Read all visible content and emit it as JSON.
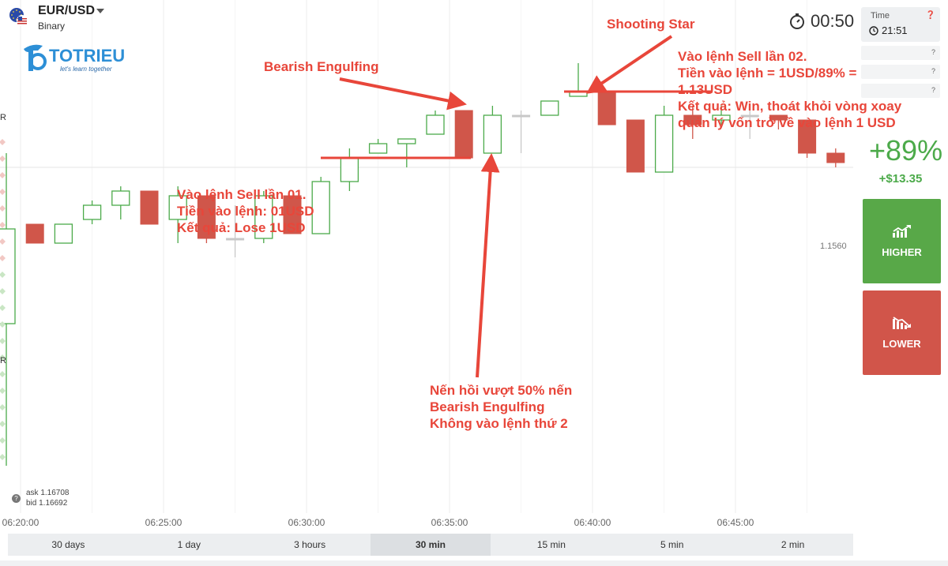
{
  "header": {
    "asset": "EUR/USD",
    "type": "Binary",
    "logo_text": "TOTRIEU",
    "logo_tagline": "let's learn together",
    "countdown": "00:50",
    "time_label": "Time",
    "time_value": "21:51"
  },
  "trade": {
    "payout": "+89%",
    "profit": "+$13.35",
    "higher_label": "HIGHER",
    "lower_label": "LOWER"
  },
  "price_label": "1.1560",
  "quote": {
    "ask": "ask 1.16708",
    "bid": "bid 1.16692"
  },
  "left_marks": [
    "R",
    "R"
  ],
  "timeframes": [
    {
      "label": "30 days",
      "active": false
    },
    {
      "label": "1 day",
      "active": false
    },
    {
      "label": "3 hours",
      "active": false
    },
    {
      "label": "30 min",
      "active": true
    },
    {
      "label": "15 min",
      "active": false
    },
    {
      "label": "5 min",
      "active": false
    },
    {
      "label": "2 min",
      "active": false
    }
  ],
  "annotations": {
    "bearish_engulfing": "Bearish Engulfing",
    "shooting_star": "Shooting Star",
    "sell1": [
      "Vào lệnh Sell lần 01.",
      "Tiền vào lệnh: 01USD",
      "Kết quả: Lose 1USD"
    ],
    "sell2": [
      "Vào lệnh Sell lần 02.",
      "Tiền vào lệnh = 1USD/89% =",
      "1.13USD",
      "Kết quả: Win, thoát khỏi vòng xoay",
      "quản lý vốn trở về vào lệnh 1 USD"
    ],
    "retrace": [
      "Nến hồi vượt 50% nến",
      "Bearish Engulfing",
      "Không vào lệnh thứ 2"
    ]
  },
  "colors": {
    "bull": "#4caa4a",
    "bear": "#d0564a",
    "doji": "#c8c8c8",
    "annotation": "#e8463a",
    "grid": "#eeeeee"
  },
  "chart_data": {
    "type": "candlestick",
    "xlabel": "",
    "ylabel": "",
    "x_ticks": [
      "06:20:00",
      "06:25:00",
      "06:30:00",
      "06:35:00",
      "06:40:00",
      "06:45:00"
    ],
    "candles": [
      {
        "t": "06:19:00",
        "open": 1.1527,
        "high": 1.1563,
        "low": 1.1497,
        "close": 1.1547
      },
      {
        "t": "06:20:00",
        "open": 1.1548,
        "high": 1.1548,
        "low": 1.1544,
        "close": 1.1544
      },
      {
        "t": "06:21:00",
        "open": 1.1544,
        "high": 1.1548,
        "low": 1.1544,
        "close": 1.1548
      },
      {
        "t": "06:22:00",
        "open": 1.1549,
        "high": 1.1553,
        "low": 1.1548,
        "close": 1.1552
      },
      {
        "t": "06:23:00",
        "open": 1.1552,
        "high": 1.1556,
        "low": 1.1549,
        "close": 1.1555
      },
      {
        "t": "06:24:00",
        "open": 1.1555,
        "high": 1.1555,
        "low": 1.1548,
        "close": 1.1548
      },
      {
        "t": "06:25:00",
        "open": 1.1549,
        "high": 1.1556,
        "low": 1.1544,
        "close": 1.1554
      },
      {
        "t": "06:26:00",
        "open": 1.1554,
        "high": 1.1554,
        "low": 1.1544,
        "close": 1.1545
      },
      {
        "t": "06:27:00",
        "open": 1.1545,
        "high": 1.1552,
        "low": 1.1541,
        "close": 1.1545
      },
      {
        "t": "06:28:00",
        "open": 1.1545,
        "high": 1.1555,
        "low": 1.1544,
        "close": 1.1554
      },
      {
        "t": "06:29:00",
        "open": 1.1554,
        "high": 1.1554,
        "low": 1.1546,
        "close": 1.1546
      },
      {
        "t": "06:30:00",
        "open": 1.1546,
        "high": 1.1558,
        "low": 1.1546,
        "close": 1.1557
      },
      {
        "t": "06:31:00",
        "open": 1.1557,
        "high": 1.1564,
        "low": 1.1555,
        "close": 1.1562
      },
      {
        "t": "06:32:00",
        "open": 1.1563,
        "high": 1.1566,
        "low": 1.1563,
        "close": 1.1565
      },
      {
        "t": "06:33:00",
        "open": 1.1565,
        "high": 1.1566,
        "low": 1.156,
        "close": 1.1566
      },
      {
        "t": "06:34:00",
        "open": 1.1567,
        "high": 1.1572,
        "low": 1.1567,
        "close": 1.1571
      },
      {
        "t": "06:35:00",
        "open": 1.1572,
        "high": 1.1572,
        "low": 1.1562,
        "close": 1.1562
      },
      {
        "t": "06:36:00",
        "open": 1.1563,
        "high": 1.1573,
        "low": 1.1563,
        "close": 1.1571
      },
      {
        "t": "06:37:00",
        "open": 1.1571,
        "high": 1.1572,
        "low": 1.1563,
        "close": 1.1571
      },
      {
        "t": "06:38:00",
        "open": 1.1571,
        "high": 1.1574,
        "low": 1.1571,
        "close": 1.1574
      },
      {
        "t": "06:39:00",
        "open": 1.1575,
        "high": 1.1582,
        "low": 1.1575,
        "close": 1.1576
      },
      {
        "t": "06:40:00",
        "open": 1.1576,
        "high": 1.1576,
        "low": 1.1569,
        "close": 1.1569
      },
      {
        "t": "06:41:00",
        "open": 1.157,
        "high": 1.157,
        "low": 1.1559,
        "close": 1.1559
      },
      {
        "t": "06:42:00",
        "open": 1.1559,
        "high": 1.1573,
        "low": 1.1559,
        "close": 1.1571
      },
      {
        "t": "06:43:00",
        "open": 1.1571,
        "high": 1.1573,
        "low": 1.1566,
        "close": 1.1569
      },
      {
        "t": "06:44:00",
        "open": 1.157,
        "high": 1.1573,
        "low": 1.1569,
        "close": 1.1571
      },
      {
        "t": "06:45:00",
        "open": 1.1571,
        "high": 1.1573,
        "low": 1.1566,
        "close": 1.1571
      },
      {
        "t": "06:46:00",
        "open": 1.1571,
        "high": 1.1571,
        "low": 1.1568,
        "close": 1.157
      },
      {
        "t": "06:47:00",
        "open": 1.157,
        "high": 1.157,
        "low": 1.1562,
        "close": 1.1563
      },
      {
        "t": "06:48:00",
        "open": 1.1563,
        "high": 1.1564,
        "low": 1.156,
        "close": 1.1561
      }
    ]
  }
}
